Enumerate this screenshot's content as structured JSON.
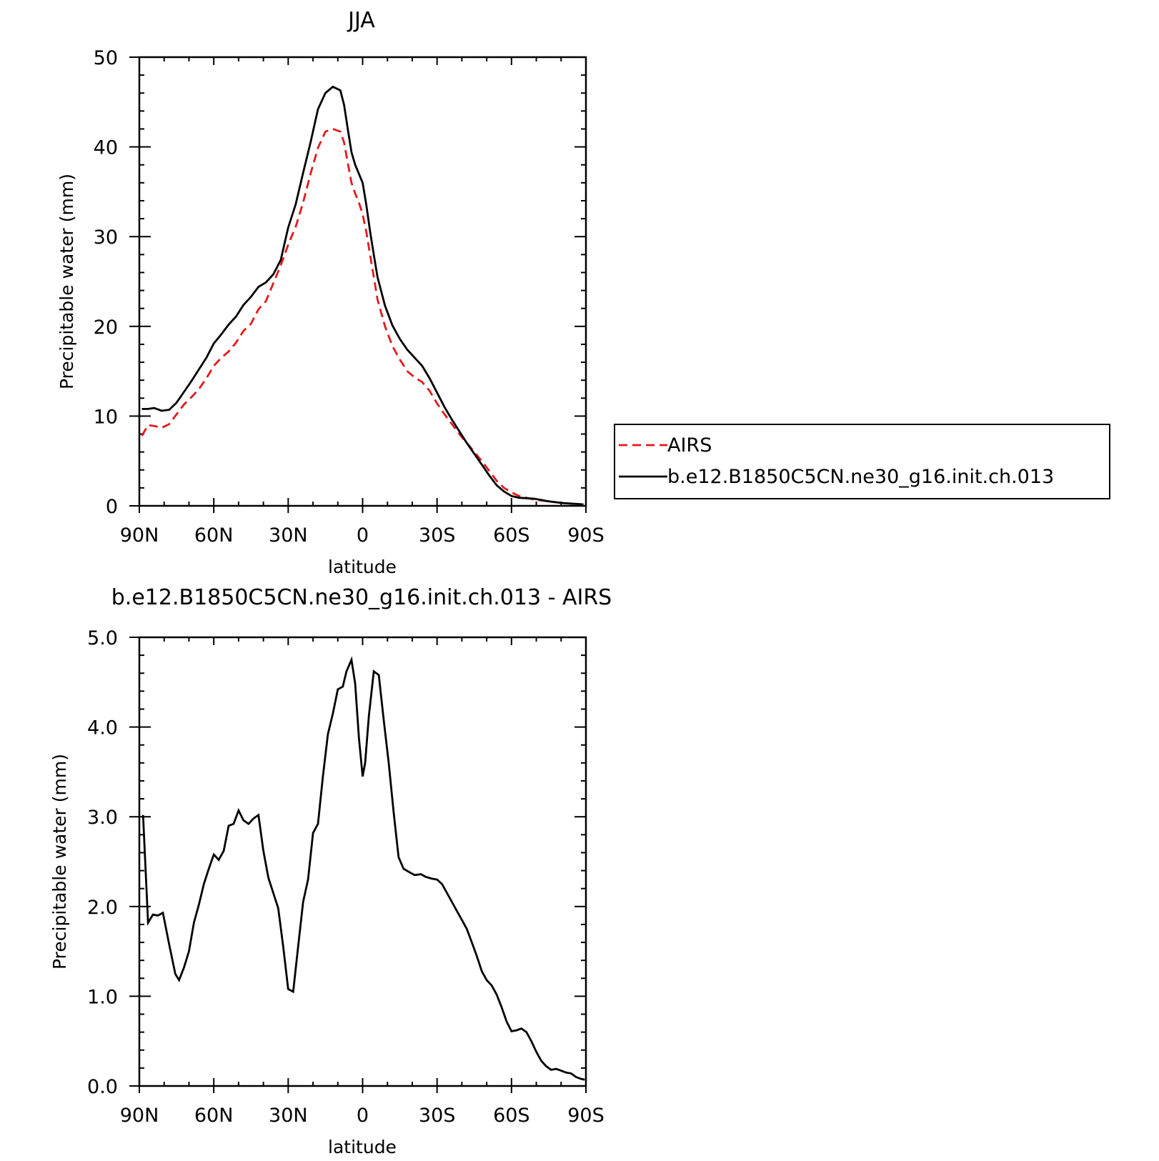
{
  "chart_data": [
    {
      "type": "line",
      "title": "JJA",
      "xlabel": "latitude",
      "ylabel": "Precipitable water (mm)",
      "xlim": [
        90,
        -90
      ],
      "ylim": [
        0,
        50
      ],
      "xticks": [
        90,
        60,
        30,
        0,
        -30,
        -60,
        -90
      ],
      "xtick_labels": [
        "90N",
        "60N",
        "30N",
        "0",
        "30S",
        "60S",
        "90S"
      ],
      "yticks": [
        0,
        10,
        20,
        30,
        40,
        50
      ],
      "ytick_labels": [
        "0",
        "10",
        "20",
        "30",
        "40",
        "50"
      ],
      "legend_position": "right",
      "series": [
        {
          "name": "AIRS",
          "color": "#e31a1c",
          "style": "dashed",
          "x": [
            89,
            86.5,
            84,
            81,
            78,
            75,
            72,
            69,
            66,
            63,
            60,
            57,
            54,
            51,
            48,
            45,
            42,
            39,
            36,
            33,
            30,
            27,
            24,
            21,
            18,
            15,
            12,
            9,
            7.5,
            6,
            4.5,
            3,
            1.5,
            0,
            -1.5,
            -3,
            -4.5,
            -6,
            -9,
            -12,
            -15,
            -18,
            -21,
            -24,
            -27,
            -30,
            -33,
            -36,
            -39,
            -42,
            -45,
            -48,
            -51,
            -54,
            -57,
            -60,
            -63,
            -66,
            -69,
            -72,
            -75,
            -78,
            -81,
            -84,
            -87,
            -89
          ],
          "y": [
            7.8,
            9.0,
            8.9,
            8.7,
            9.1,
            10.2,
            11.3,
            12.1,
            13.0,
            14.2,
            15.6,
            16.5,
            17.2,
            18.2,
            19.5,
            20.3,
            21.9,
            22.8,
            24.8,
            26.8,
            29.1,
            31.1,
            33.8,
            37.0,
            39.9,
            41.7,
            42.0,
            41.7,
            40.5,
            38.2,
            36.0,
            34.8,
            33.8,
            32.5,
            30.5,
            28.0,
            25.5,
            23.0,
            20.0,
            17.8,
            16.3,
            15.0,
            14.3,
            13.8,
            12.8,
            11.4,
            10.2,
            9.1,
            8.0,
            7.0,
            6.0,
            5.0,
            3.9,
            2.8,
            2.0,
            1.5,
            1.1,
            0.9,
            0.7,
            0.6,
            0.5,
            0.4,
            0.3,
            0.25,
            0.2,
            0.15
          ]
        },
        {
          "name": "b.e12.B1850C5CN.ne30_g16.init.ch.013",
          "color": "#000000",
          "style": "solid",
          "x": [
            89,
            86.5,
            84,
            81,
            78,
            75,
            72,
            69,
            66,
            63,
            60,
            57,
            54,
            51,
            48,
            45,
            42,
            39,
            36,
            33,
            30,
            27,
            24,
            21,
            18,
            15,
            12,
            9,
            7.5,
            6,
            4.5,
            3,
            1.5,
            0,
            -1.5,
            -3,
            -4.5,
            -6,
            -9,
            -12,
            -15,
            -18,
            -21,
            -24,
            -27,
            -30,
            -33,
            -36,
            -39,
            -42,
            -45,
            -48,
            -51,
            -54,
            -57,
            -60,
            -63,
            -66,
            -69,
            -72,
            -75,
            -78,
            -81,
            -84,
            -87,
            -89
          ],
          "y": [
            10.8,
            10.8,
            10.9,
            10.6,
            10.7,
            11.5,
            12.7,
            13.9,
            15.2,
            16.5,
            18.1,
            19.1,
            20.2,
            21.1,
            22.4,
            23.3,
            24.4,
            24.9,
            25.8,
            27.4,
            31.0,
            33.6,
            37.1,
            40.5,
            44.2,
            46.0,
            46.7,
            46.3,
            44.7,
            42.0,
            39.4,
            38.0,
            37.0,
            36.0,
            33.5,
            30.6,
            28.0,
            25.5,
            22.3,
            20.1,
            18.6,
            17.4,
            16.5,
            15.6,
            14.2,
            12.6,
            11.0,
            9.6,
            8.3,
            7.0,
            5.8,
            4.6,
            3.4,
            2.3,
            1.6,
            1.1,
            0.9,
            0.85,
            0.8,
            0.65,
            0.5,
            0.4,
            0.3,
            0.25,
            0.2,
            0.15
          ]
        }
      ]
    },
    {
      "type": "line",
      "title": "b.e12.B1850C5CN.ne30_g16.init.ch.013 - AIRS",
      "xlabel": "latitude",
      "ylabel": "Precipitable water (mm)",
      "xlim": [
        90,
        -90
      ],
      "ylim": [
        0,
        5
      ],
      "xticks": [
        90,
        60,
        30,
        0,
        -30,
        -60,
        -90
      ],
      "xtick_labels": [
        "90N",
        "60N",
        "30N",
        "0",
        "30S",
        "60S",
        "90S"
      ],
      "yticks": [
        0,
        1,
        2,
        3,
        4,
        5
      ],
      "ytick_labels": [
        "0.0",
        "1.0",
        "2.0",
        "3.0",
        "4.0",
        "5.0"
      ],
      "series": [
        {
          "color": "#000000",
          "style": "solid",
          "x": [
            88.5,
            86.5,
            84.5,
            82.5,
            80.5,
            78,
            75.5,
            74,
            72,
            70,
            68,
            66,
            64,
            62,
            60,
            58,
            56,
            54,
            52,
            50,
            48,
            46,
            44,
            42,
            40,
            38,
            36,
            34,
            32,
            30,
            28,
            26,
            24,
            22,
            20,
            18,
            16,
            14,
            12,
            10,
            8,
            6.5,
            4.5,
            3,
            1.5,
            0,
            -1,
            -2.5,
            -4.5,
            -6.5,
            -8.5,
            -10.5,
            -12.5,
            -14.5,
            -16.5,
            -19,
            -21,
            -23.5,
            -25.5,
            -28,
            -30,
            -32,
            -34,
            -36,
            -38,
            -40,
            -42,
            -44,
            -46,
            -48,
            -50,
            -52,
            -54,
            -56,
            -58,
            -60,
            -62,
            -64,
            -66,
            -68,
            -70,
            -72,
            -74,
            -76,
            -78,
            -80,
            -82,
            -84,
            -86,
            -88,
            -89.5
          ],
          "y": [
            3.02,
            1.82,
            1.91,
            1.9,
            1.93,
            1.58,
            1.25,
            1.18,
            1.32,
            1.5,
            1.82,
            2.02,
            2.25,
            2.42,
            2.58,
            2.52,
            2.62,
            2.9,
            2.92,
            3.07,
            2.96,
            2.92,
            2.98,
            3.02,
            2.62,
            2.32,
            2.15,
            1.98,
            1.55,
            1.08,
            1.05,
            1.55,
            2.05,
            2.3,
            2.82,
            2.92,
            3.45,
            3.92,
            4.15,
            4.42,
            4.45,
            4.62,
            4.75,
            4.48,
            3.88,
            3.45,
            3.6,
            4.12,
            4.62,
            4.58,
            4.08,
            3.6,
            3.05,
            2.55,
            2.42,
            2.38,
            2.35,
            2.36,
            2.33,
            2.31,
            2.3,
            2.25,
            2.15,
            2.05,
            1.95,
            1.85,
            1.75,
            1.6,
            1.45,
            1.28,
            1.18,
            1.12,
            1.02,
            0.88,
            0.72,
            0.61,
            0.62,
            0.64,
            0.6,
            0.5,
            0.38,
            0.28,
            0.22,
            0.18,
            0.19,
            0.17,
            0.15,
            0.14,
            0.1,
            0.08,
            0.07
          ]
        }
      ]
    }
  ]
}
